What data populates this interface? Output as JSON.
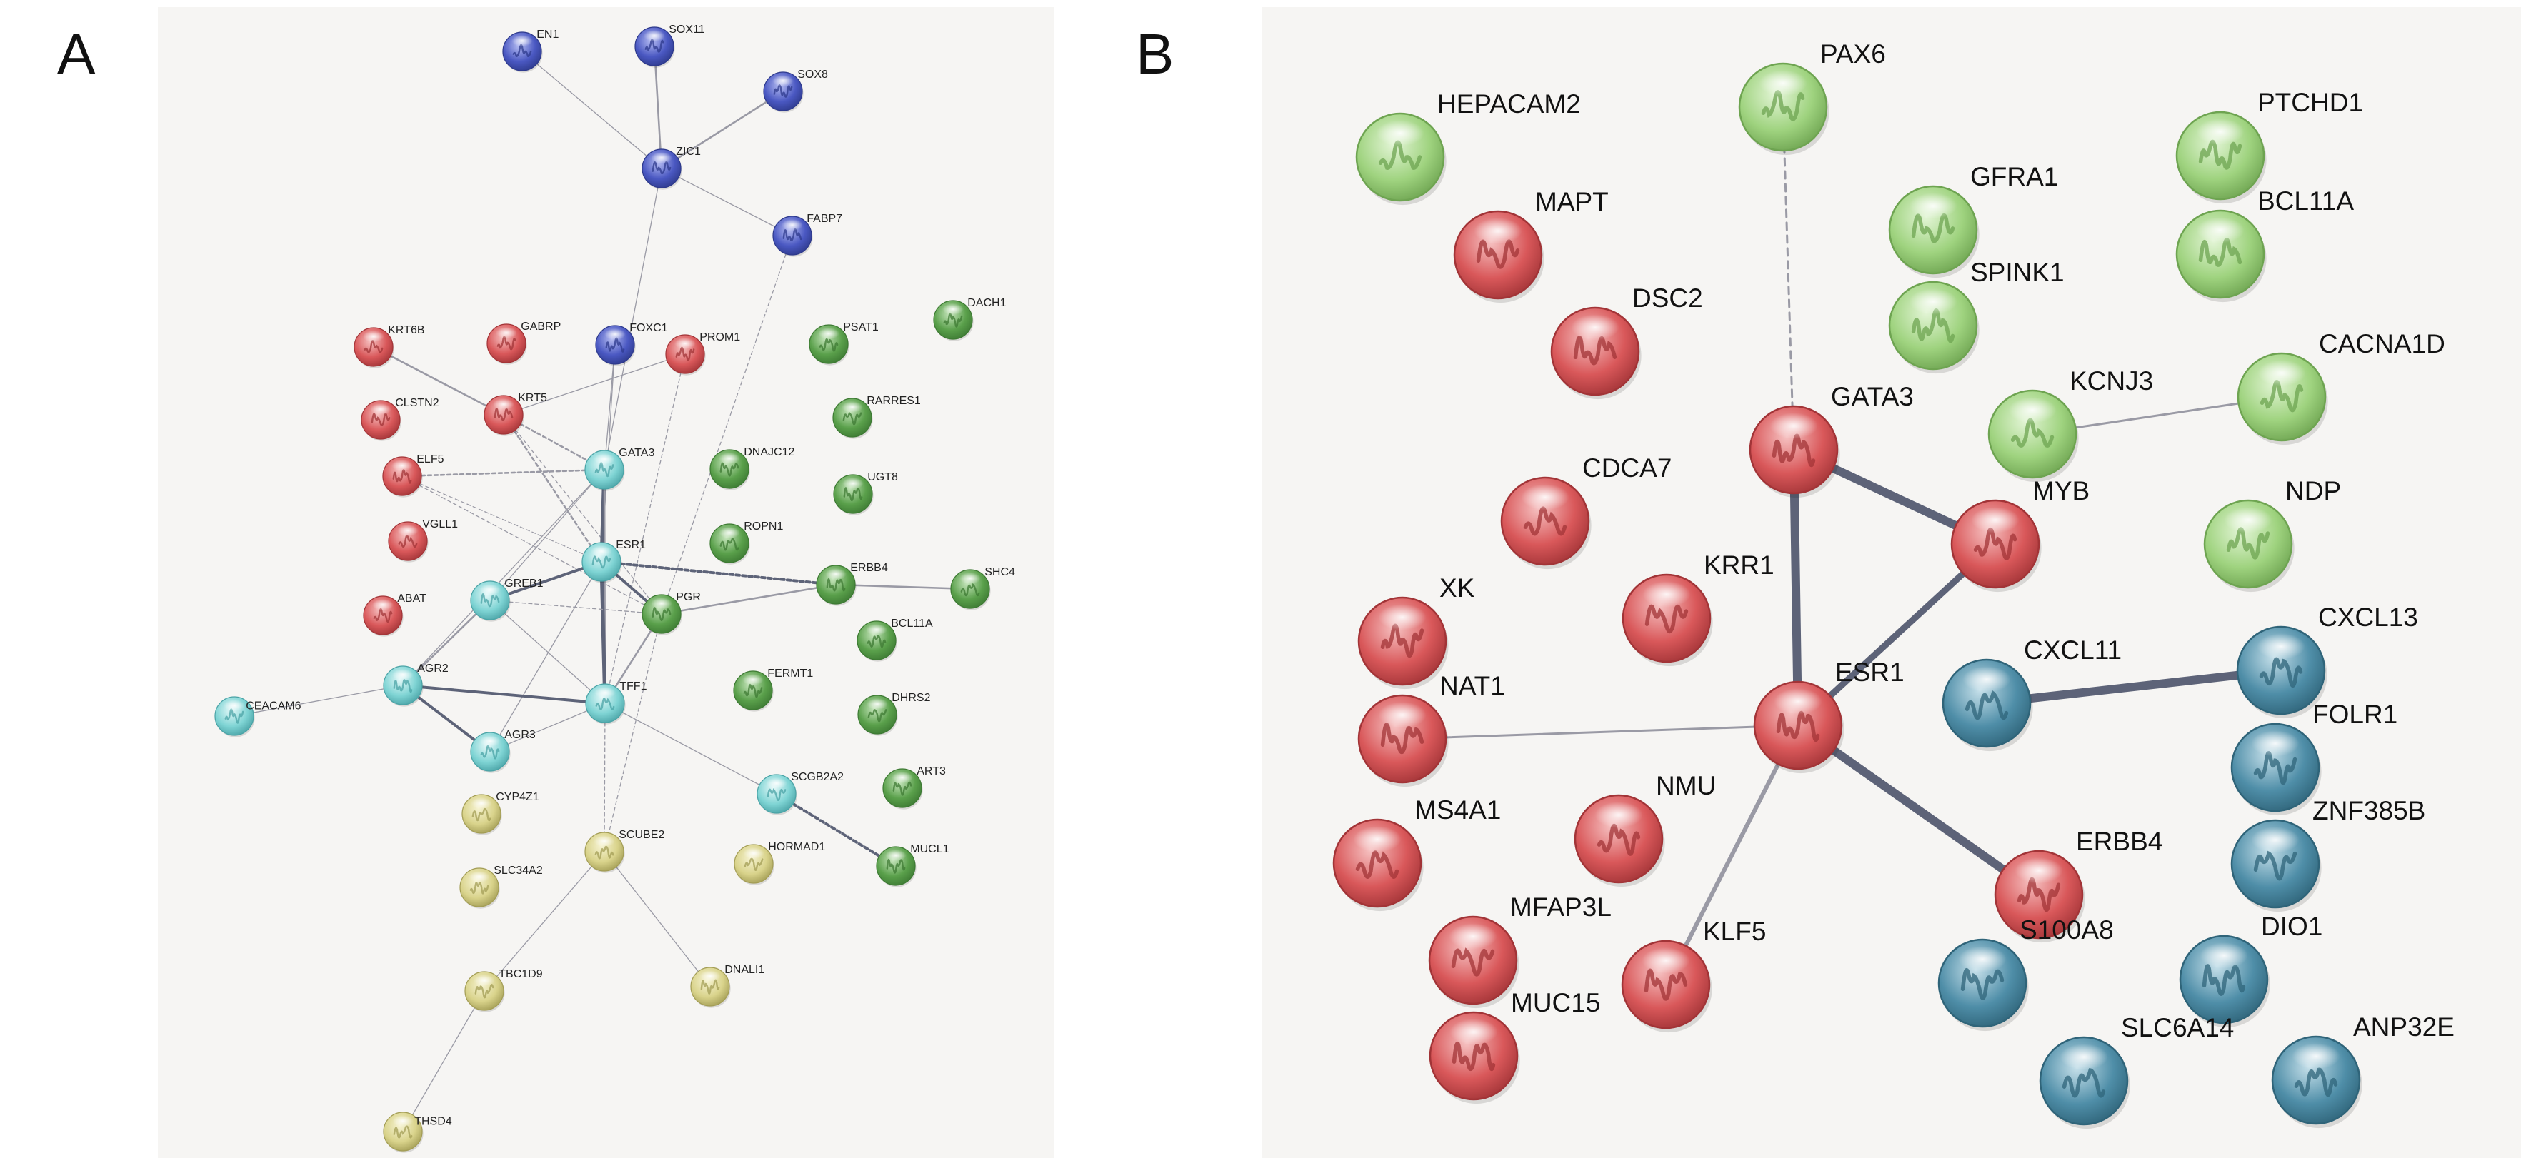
{
  "panel_a": {
    "letter": "A",
    "nodes": [
      {
        "id": "EN1",
        "label": "EN1",
        "color": "blue"
      },
      {
        "id": "SOX11",
        "label": "SOX11",
        "color": "blue"
      },
      {
        "id": "SOX8",
        "label": "SOX8",
        "color": "blue"
      },
      {
        "id": "ZIC1",
        "label": "ZIC1",
        "color": "blue"
      },
      {
        "id": "FABP7",
        "label": "FABP7",
        "color": "blue"
      },
      {
        "id": "FOXC1",
        "label": "FOXC1",
        "color": "blue"
      },
      {
        "id": "KRT6B",
        "label": "KRT6B",
        "color": "red"
      },
      {
        "id": "GABRP",
        "label": "GABRP",
        "color": "red"
      },
      {
        "id": "PROM1",
        "label": "PROM1",
        "color": "red"
      },
      {
        "id": "CLSTN2",
        "label": "CLSTN2",
        "color": "red"
      },
      {
        "id": "KRT5",
        "label": "KRT5",
        "color": "red"
      },
      {
        "id": "ELF5",
        "label": "ELF5",
        "color": "red"
      },
      {
        "id": "VGLL1",
        "label": "VGLL1",
        "color": "red"
      },
      {
        "id": "ABAT",
        "label": "ABAT",
        "color": "red"
      },
      {
        "id": "GATA3",
        "label": "GATA3",
        "color": "cyan"
      },
      {
        "id": "ESR1",
        "label": "ESR1",
        "color": "cyan"
      },
      {
        "id": "GREB1",
        "label": "GREB1",
        "color": "cyan"
      },
      {
        "id": "AGR2",
        "label": "AGR2",
        "color": "cyan"
      },
      {
        "id": "TFF1",
        "label": "TFF1",
        "color": "cyan"
      },
      {
        "id": "AGR3",
        "label": "AGR3",
        "color": "cyan"
      },
      {
        "id": "CEACAM6",
        "label": "CEACAM6",
        "color": "cyan"
      },
      {
        "id": "SCGB2A2",
        "label": "SCGB2A2",
        "color": "cyan"
      },
      {
        "id": "PGR",
        "label": "PGR",
        "color": "green"
      },
      {
        "id": "ERBB4",
        "label": "ERBB4",
        "color": "green"
      },
      {
        "id": "SHC4",
        "label": "SHC4",
        "color": "green"
      },
      {
        "id": "PSAT1",
        "label": "PSAT1",
        "color": "green"
      },
      {
        "id": "DACH1",
        "label": "DACH1",
        "color": "green"
      },
      {
        "id": "RARRES1",
        "label": "RARRES1",
        "color": "green"
      },
      {
        "id": "DNAJC12",
        "label": "DNAJC12",
        "color": "green"
      },
      {
        "id": "UGT8",
        "label": "UGT8",
        "color": "green"
      },
      {
        "id": "ROPN1",
        "label": "ROPN1",
        "color": "green"
      },
      {
        "id": "BCL11A",
        "label": "BCL11A",
        "color": "green"
      },
      {
        "id": "FERMT1",
        "label": "FERMT1",
        "color": "green"
      },
      {
        "id": "DHRS2",
        "label": "DHRS2",
        "color": "green"
      },
      {
        "id": "ART3",
        "label": "ART3",
        "color": "green"
      },
      {
        "id": "MUCL1",
        "label": "MUCL1",
        "color": "green"
      },
      {
        "id": "CYP4Z1",
        "label": "CYP4Z1",
        "color": "yellow"
      },
      {
        "id": "SCUBE2",
        "label": "SCUBE2",
        "color": "yellow"
      },
      {
        "id": "SLC34A2",
        "label": "SLC34A2",
        "color": "yellow"
      },
      {
        "id": "HORMAD1",
        "label": "HORMAD1",
        "color": "yellow"
      },
      {
        "id": "TBC1D9",
        "label": "TBC1D9",
        "color": "yellow"
      },
      {
        "id": "DNALI1",
        "label": "DNALI1",
        "color": "yellow"
      },
      {
        "id": "THSD4",
        "label": "THSD4",
        "color": "yellow"
      }
    ],
    "edges": [
      {
        "from": "EN1",
        "to": "ZIC1",
        "style": "solid",
        "weight": 1
      },
      {
        "from": "SOX11",
        "to": "ZIC1",
        "style": "solid",
        "weight": 2
      },
      {
        "from": "SOX8",
        "to": "ZIC1",
        "style": "solid",
        "weight": 2
      },
      {
        "from": "ZIC1",
        "to": "FABP7",
        "style": "solid",
        "weight": 1
      },
      {
        "from": "ZIC1",
        "to": "GATA3",
        "style": "solid",
        "weight": 1
      },
      {
        "from": "FABP7",
        "to": "PGR",
        "style": "dashed",
        "weight": 1
      },
      {
        "from": "FOXC1",
        "to": "GATA3",
        "style": "solid",
        "weight": 1
      },
      {
        "from": "FOXC1",
        "to": "ESR1",
        "style": "solid",
        "weight": 1
      },
      {
        "from": "PROM1",
        "to": "KRT5",
        "style": "solid",
        "weight": 1
      },
      {
        "from": "PROM1",
        "to": "TFF1",
        "style": "dashed",
        "weight": 1
      },
      {
        "from": "KRT6B",
        "to": "KRT5",
        "style": "solid",
        "weight": 2
      },
      {
        "from": "KRT5",
        "to": "GATA3",
        "style": "dashed",
        "weight": 2
      },
      {
        "from": "KRT5",
        "to": "ESR1",
        "style": "dashed",
        "weight": 2
      },
      {
        "from": "KRT5",
        "to": "PGR",
        "style": "dashed",
        "weight": 1
      },
      {
        "from": "ELF5",
        "to": "GATA3",
        "style": "dashed",
        "weight": 2
      },
      {
        "from": "ELF5",
        "to": "ESR1",
        "style": "dashed",
        "weight": 1
      },
      {
        "from": "ELF5",
        "to": "PGR",
        "style": "dashed",
        "weight": 1
      },
      {
        "from": "GATA3",
        "to": "ESR1",
        "style": "solid",
        "weight": 4
      },
      {
        "from": "GATA3",
        "to": "TFF1",
        "style": "solid",
        "weight": 2
      },
      {
        "from": "GATA3",
        "to": "GREB1",
        "style": "solid",
        "weight": 1
      },
      {
        "from": "GATA3",
        "to": "AGR2",
        "style": "solid",
        "weight": 1
      },
      {
        "from": "ESR1",
        "to": "PGR",
        "style": "solid",
        "weight": 3
      },
      {
        "from": "ESR1",
        "to": "ERBB4",
        "style": "dashed",
        "weight": 3
      },
      {
        "from": "ESR1",
        "to": "TFF1",
        "style": "solid",
        "weight": 4
      },
      {
        "from": "ESR1",
        "to": "GREB1",
        "style": "solid",
        "weight": 3
      },
      {
        "from": "ESR1",
        "to": "AGR3",
        "style": "solid",
        "weight": 1
      },
      {
        "from": "GREB1",
        "to": "PGR",
        "style": "dashed",
        "weight": 1
      },
      {
        "from": "GREB1",
        "to": "TFF1",
        "style": "solid",
        "weight": 1
      },
      {
        "from": "GREB1",
        "to": "AGR2",
        "style": "solid",
        "weight": 2
      },
      {
        "from": "PGR",
        "to": "ERBB4",
        "style": "solid",
        "weight": 2
      },
      {
        "from": "PGR",
        "to": "TFF1",
        "style": "solid",
        "weight": 2
      },
      {
        "from": "PGR",
        "to": "SCUBE2",
        "style": "dashed",
        "weight": 1
      },
      {
        "from": "ERBB4",
        "to": "SHC4",
        "style": "solid",
        "weight": 2
      },
      {
        "from": "AGR2",
        "to": "TFF1",
        "style": "solid",
        "weight": 3
      },
      {
        "from": "AGR2",
        "to": "AGR3",
        "style": "solid",
        "weight": 3
      },
      {
        "from": "AGR2",
        "to": "CEACAM6",
        "style": "solid",
        "weight": 1
      },
      {
        "from": "AGR3",
        "to": "TFF1",
        "style": "solid",
        "weight": 1
      },
      {
        "from": "TFF1",
        "to": "SCGB2A2",
        "style": "solid",
        "weight": 1
      },
      {
        "from": "TFF1",
        "to": "SCUBE2",
        "style": "dashed",
        "weight": 1
      },
      {
        "from": "SCGB2A2",
        "to": "MUCL1",
        "style": "dashed",
        "weight": 3
      },
      {
        "from": "SCUBE2",
        "to": "TBC1D9",
        "style": "solid",
        "weight": 1
      },
      {
        "from": "SCUBE2",
        "to": "DNALI1",
        "style": "solid",
        "weight": 1
      },
      {
        "from": "TBC1D9",
        "to": "THSD4",
        "style": "solid",
        "weight": 1
      }
    ]
  },
  "panel_b": {
    "letter": "B",
    "nodes": [
      {
        "id": "HEPACAM2",
        "label": "HEPACAM2",
        "color": "green"
      },
      {
        "id": "PAX6",
        "label": "PAX6",
        "color": "green"
      },
      {
        "id": "PTCHD1",
        "label": "PTCHD1",
        "color": "green"
      },
      {
        "id": "GFRA1",
        "label": "GFRA1",
        "color": "green"
      },
      {
        "id": "BCL11A",
        "label": "BCL11A",
        "color": "green"
      },
      {
        "id": "SPINK1",
        "label": "SPINK1",
        "color": "green"
      },
      {
        "id": "KCNJ3",
        "label": "KCNJ3",
        "color": "green"
      },
      {
        "id": "CACNA1D",
        "label": "CACNA1D",
        "color": "green"
      },
      {
        "id": "NDP",
        "label": "NDP",
        "color": "green"
      },
      {
        "id": "MAPT",
        "label": "MAPT",
        "color": "red"
      },
      {
        "id": "DSC2",
        "label": "DSC2",
        "color": "red"
      },
      {
        "id": "GATA3",
        "label": "GATA3",
        "color": "red"
      },
      {
        "id": "CDCA7",
        "label": "CDCA7",
        "color": "red"
      },
      {
        "id": "MYB",
        "label": "MYB",
        "color": "red"
      },
      {
        "id": "XK",
        "label": "XK",
        "color": "red"
      },
      {
        "id": "KRR1",
        "label": "KRR1",
        "color": "red"
      },
      {
        "id": "NAT1",
        "label": "NAT1",
        "color": "red"
      },
      {
        "id": "ESR1",
        "label": "ESR1",
        "color": "red"
      },
      {
        "id": "MS4A1",
        "label": "MS4A1",
        "color": "red"
      },
      {
        "id": "NMU",
        "label": "NMU",
        "color": "red"
      },
      {
        "id": "ERBB4",
        "label": "ERBB4",
        "color": "red"
      },
      {
        "id": "MFAP3L",
        "label": "MFAP3L",
        "color": "red"
      },
      {
        "id": "KLF5",
        "label": "KLF5",
        "color": "red"
      },
      {
        "id": "MUC15",
        "label": "MUC15",
        "color": "red"
      },
      {
        "id": "CXCL11",
        "label": "CXCL11",
        "color": "teal"
      },
      {
        "id": "CXCL13",
        "label": "CXCL13",
        "color": "teal"
      },
      {
        "id": "FOLR1",
        "label": "FOLR1",
        "color": "teal"
      },
      {
        "id": "ZNF385B",
        "label": "ZNF385B",
        "color": "teal"
      },
      {
        "id": "S100A8",
        "label": "S100A8",
        "color": "teal"
      },
      {
        "id": "DIO1",
        "label": "DIO1",
        "color": "teal"
      },
      {
        "id": "SLC6A14",
        "label": "SLC6A14",
        "color": "teal"
      },
      {
        "id": "ANP32E",
        "label": "ANP32E",
        "color": "teal"
      }
    ],
    "edges": [
      {
        "from": "PAX6",
        "to": "GATA3",
        "style": "dashed",
        "weight": 1
      },
      {
        "from": "GATA3",
        "to": "ESR1",
        "style": "solid",
        "weight": 4
      },
      {
        "from": "GATA3",
        "to": "MYB",
        "style": "solid",
        "weight": 4
      },
      {
        "from": "MYB",
        "to": "ESR1",
        "style": "solid",
        "weight": 3
      },
      {
        "from": "ESR1",
        "to": "ERBB4",
        "style": "solid",
        "weight": 4
      },
      {
        "from": "ESR1",
        "to": "NAT1",
        "style": "solid",
        "weight": 1
      },
      {
        "from": "ESR1",
        "to": "KLF5",
        "style": "solid",
        "weight": 2
      },
      {
        "from": "KCNJ3",
        "to": "CACNA1D",
        "style": "solid",
        "weight": 1
      },
      {
        "from": "CXCL11",
        "to": "CXCL13",
        "style": "solid",
        "weight": 4
      }
    ]
  },
  "palette": {
    "blue": {
      "fill": "#4a58c2",
      "light": "#b6bdf2",
      "stroke": "#2e3a8c"
    },
    "red": {
      "fill": "#d9585a",
      "light": "#f6c2c2",
      "stroke": "#a23437"
    },
    "cyan": {
      "fill": "#7fd4d4",
      "light": "#e4f8f8",
      "stroke": "#4aa3a6"
    },
    "green": {
      "fill": "#5aa04b",
      "light": "#c7e6bd",
      "stroke": "#3d7a33"
    },
    "yellow": {
      "fill": "#d9d38b",
      "light": "#f6f3d2",
      "stroke": "#a39d55"
    },
    "teal": {
      "fill": "#4f8ea8",
      "light": "#c6e0ea",
      "stroke": "#2f6479"
    },
    "lightgreen": {
      "fill": "#9fd37f",
      "light": "#e3f5d6",
      "stroke": "#6ea451"
    },
    "edge": "#5d6378",
    "edge_light": "#9a9aa5"
  }
}
